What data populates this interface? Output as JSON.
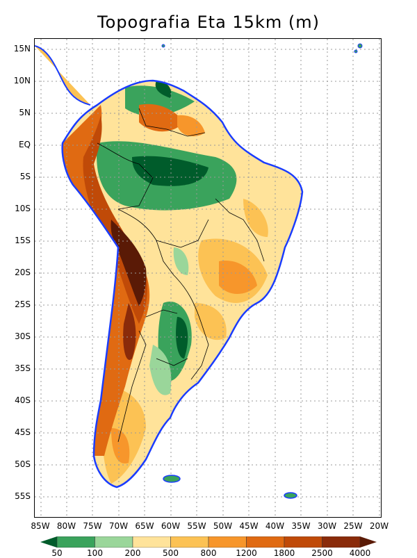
{
  "title": "Topografia Eta 15km (m)",
  "lat_labels": [
    "15N",
    "10N",
    "5N",
    "EQ",
    "5S",
    "10S",
    "15S",
    "20S",
    "25S",
    "30S",
    "35S",
    "40S",
    "45S",
    "50S",
    "55S"
  ],
  "lon_labels": [
    "85W",
    "80W",
    "75W",
    "70W",
    "65W",
    "60W",
    "55W",
    "50W",
    "45W",
    "40W",
    "35W",
    "30W",
    "25W",
    "20W"
  ],
  "colorbar": {
    "labels": [
      "50",
      "100",
      "200",
      "500",
      "800",
      "1200",
      "1800",
      "2500",
      "4000"
    ],
    "colors": [
      "#005c2b",
      "#3aa35c",
      "#9ad69a",
      "#ffe39a",
      "#fcc254",
      "#f7962b",
      "#e06a12",
      "#c04a08",
      "#8a2b0a",
      "#5a1a06"
    ]
  },
  "palette": {
    "ocean": "#ffffff",
    "coast": "#1a3cff",
    "borders": "#000000",
    "grid": "#999999"
  }
}
